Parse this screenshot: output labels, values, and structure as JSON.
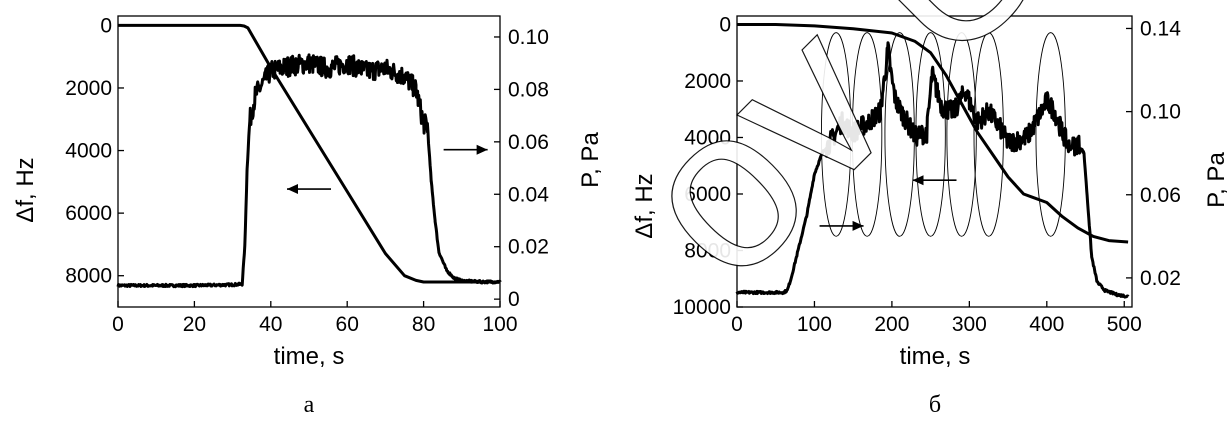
{
  "watermark": "ov Unive",
  "chart_data": [
    {
      "type": "line",
      "panel_label": "a",
      "xlabel": "time, s",
      "ylabel_left": "Δf, Hz",
      "ylabel_right": "P, Pa",
      "xlim": [
        0,
        100
      ],
      "ylim_left": [
        9000,
        -300
      ],
      "ylim_right": [
        -0.003,
        0.108
      ],
      "x_ticks": [
        "0",
        "20",
        "40",
        "60",
        "80",
        "100"
      ],
      "y_left_ticks": [
        "0",
        "2000",
        "4000",
        "6000",
        "8000"
      ],
      "y_right_ticks": [
        "0",
        "0.02",
        "0.04",
        "0.06",
        "0.08",
        "0.10"
      ],
      "series": [
        {
          "axis": "left",
          "x": [
            0,
            10,
            20,
            30,
            32,
            33,
            34,
            40,
            50,
            60,
            70,
            75,
            78,
            80,
            81,
            82,
            90,
            100
          ],
          "y": [
            0,
            0,
            0,
            0,
            0,
            20,
            80,
            1350,
            3330,
            5310,
            7290,
            8000,
            8150,
            8200,
            8200,
            8200,
            8200,
            8200
          ]
        },
        {
          "axis": "right",
          "x": [
            0,
            10,
            20,
            30,
            32.5,
            33.2,
            33.8,
            34.5,
            36,
            40,
            45,
            50,
            55,
            60,
            65,
            70,
            75,
            78,
            80,
            81,
            82,
            83,
            84,
            86,
            88,
            90,
            95,
            100
          ],
          "y": [
            0.0052,
            0.0052,
            0.0052,
            0.0055,
            0.0057,
            0.02,
            0.05,
            0.068,
            0.078,
            0.087,
            0.089,
            0.09,
            0.088,
            0.09,
            0.087,
            0.088,
            0.085,
            0.08,
            0.067,
            0.066,
            0.045,
            0.03,
            0.018,
            0.011,
            0.008,
            0.007,
            0.0066,
            0.0066
          ]
        }
      ],
      "annotations": [
        {
          "type": "arrow",
          "points_to": "left-axis",
          "at": [
            50,
            0.042
          ]
        },
        {
          "type": "arrow",
          "points_to": "right-axis",
          "at": [
            91,
            0.057
          ]
        }
      ]
    },
    {
      "type": "line",
      "panel_label": "б",
      "xlabel": "time, s",
      "ylabel_left": "Δf, Hz",
      "ylabel_right": "P, Pa",
      "xlim": [
        0,
        510
      ],
      "ylim_left": [
        10000,
        -300
      ],
      "ylim_right": [
        0.006,
        0.146
      ],
      "x_ticks": [
        "0",
        "100",
        "200",
        "300",
        "400",
        "500"
      ],
      "y_left_ticks": [
        "0",
        "2000",
        "4000",
        "6000",
        "8000",
        "10000"
      ],
      "y_right_ticks": [
        "0.02",
        "0.06",
        "0.10",
        "0.14"
      ],
      "series": [
        {
          "axis": "left",
          "x": [
            0,
            50,
            100,
            150,
            200,
            230,
            250,
            270,
            290,
            310,
            330,
            350,
            370,
            380,
            400,
            420,
            440,
            460,
            480,
            505
          ],
          "y": [
            0,
            0,
            50,
            150,
            300,
            600,
            1000,
            1800,
            2800,
            3800,
            4600,
            5400,
            6000,
            6100,
            6300,
            6800,
            7200,
            7500,
            7650,
            7700
          ]
        },
        {
          "axis": "right",
          "x": [
            0,
            60,
            65,
            70,
            80,
            90,
            100,
            110,
            125,
            135,
            150,
            170,
            185,
            195,
            200,
            205,
            215,
            230,
            245,
            252,
            258,
            265,
            280,
            295,
            310,
            325,
            340,
            350,
            360,
            375,
            390,
            400,
            410,
            420,
            430,
            440,
            448,
            452,
            458,
            465,
            475,
            490,
            505
          ],
          "y": [
            0.013,
            0.013,
            0.014,
            0.02,
            0.035,
            0.05,
            0.07,
            0.08,
            0.088,
            0.095,
            0.09,
            0.095,
            0.1,
            0.13,
            0.115,
            0.105,
            0.098,
            0.088,
            0.09,
            0.118,
            0.11,
            0.102,
            0.1,
            0.11,
            0.095,
            0.1,
            0.092,
            0.085,
            0.086,
            0.088,
            0.098,
            0.105,
            0.1,
            0.09,
            0.082,
            0.085,
            0.08,
            0.06,
            0.03,
            0.018,
            0.014,
            0.012,
            0.011
          ]
        }
      ],
      "annotations": [
        {
          "type": "arrow",
          "points_to": "right-axis",
          "at": [
            135,
            0.045
          ]
        },
        {
          "type": "arrow",
          "points_to": "left-axis",
          "at": [
            255,
            0.067
          ]
        },
        {
          "type": "ellipses",
          "centers_x": [
            128,
            168,
            210,
            250,
            290,
            325,
            405
          ],
          "y_range": [
            0.04,
            0.138
          ]
        }
      ]
    }
  ]
}
